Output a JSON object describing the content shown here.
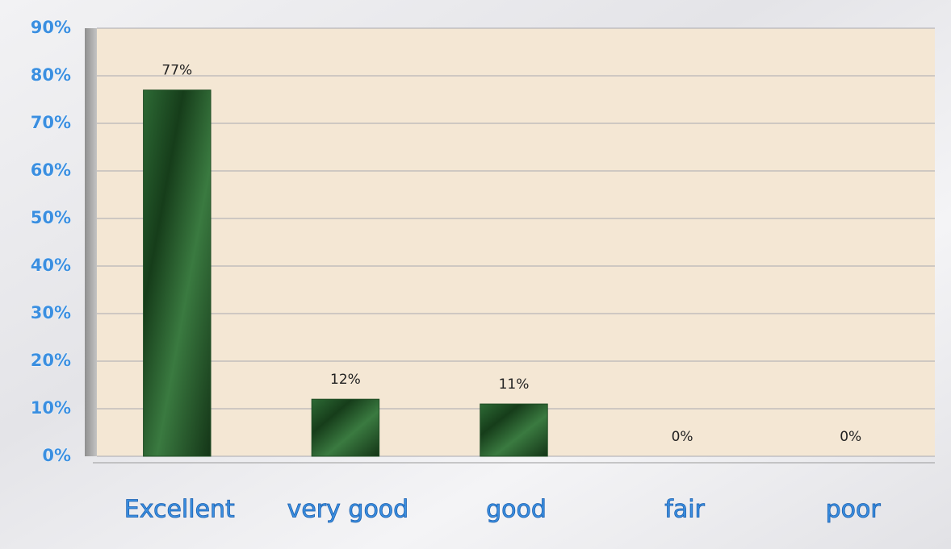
{
  "chart_data": {
    "type": "bar",
    "categories": [
      "Excellent",
      "very good",
      "good",
      "fair",
      "poor"
    ],
    "values": [
      77,
      12,
      11,
      0,
      0
    ],
    "value_labels": [
      "77%",
      "12%",
      "11%",
      "0%",
      "0%"
    ],
    "color": "#1f4d24",
    "ylim": [
      0,
      90
    ],
    "yticks": [
      {
        "value": 0,
        "label": "0%"
      },
      {
        "value": 10,
        "label": "10%"
      },
      {
        "value": 20,
        "label": "20%"
      },
      {
        "value": 30,
        "label": "30%"
      },
      {
        "value": 40,
        "label": "40%"
      },
      {
        "value": 50,
        "label": "50%"
      },
      {
        "value": 60,
        "label": "60%"
      },
      {
        "value": 70,
        "label": "70%"
      },
      {
        "value": 80,
        "label": "80%"
      },
      {
        "value": 90,
        "label": "90%"
      }
    ],
    "grid": true
  }
}
